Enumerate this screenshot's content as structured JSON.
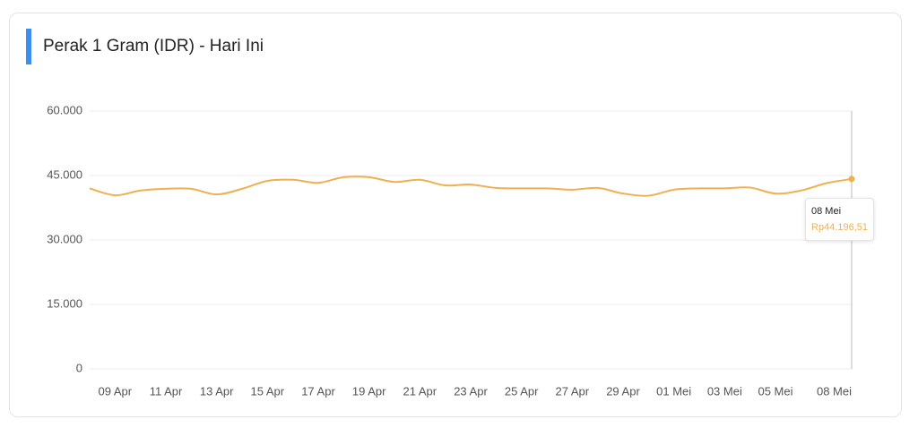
{
  "chart_data": {
    "type": "line",
    "title": "Perak 1 Gram (IDR) - Hari Ini",
    "categories": [
      null,
      "09 Apr",
      null,
      "11 Apr",
      null,
      "13 Apr",
      null,
      "15 Apr",
      null,
      "17 Apr",
      null,
      "19 Apr",
      null,
      "21 Apr",
      null,
      "23 Apr",
      null,
      "25 Apr",
      null,
      "27 Apr",
      null,
      "29 Apr",
      null,
      "01 Mei",
      null,
      "03 Mei",
      null,
      "05 Mei",
      null,
      null,
      "08 Mei"
    ],
    "values": [
      42000,
      40400,
      41500,
      41900,
      41900,
      40600,
      41900,
      43750,
      44000,
      43300,
      44600,
      44600,
      43500,
      44000,
      42700,
      42900,
      42100,
      42000,
      42000,
      41700,
      42100,
      40800,
      40300,
      41700,
      42000,
      42000,
      42200,
      40800,
      41500,
      43200,
      44196.51
    ],
    "tooltip_label": "Rp44.196,51",
    "color": "#f0b050",
    "ylim": [
      0,
      60000
    ],
    "yticks": [
      0,
      {
        "value": 15000,
        "label": "15.000"
      },
      {
        "value": 30000,
        "label": "30.000"
      },
      {
        "value": 45000,
        "label": "45.000"
      },
      {
        "value": 60000,
        "label": "60.000"
      }
    ],
    "grid": true
  }
}
